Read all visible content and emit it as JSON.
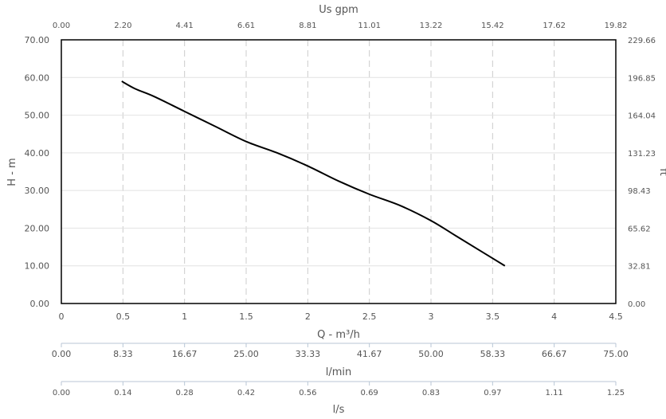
{
  "chart_data": {
    "type": "line",
    "title": "",
    "grid": true,
    "xlabel": "Q - m³/h",
    "ylabel": "H - m",
    "xlim": [
      0,
      4.5
    ],
    "ylim": [
      0,
      70
    ],
    "x_ticks": [
      "0",
      "0.5",
      "1",
      "1.5",
      "2",
      "2.5",
      "3",
      "3.5",
      "4",
      "4.5"
    ],
    "y_ticks": [
      "0.00",
      "10.00",
      "20.00",
      "30.00",
      "40.00",
      "50.00",
      "60.00",
      "70.00"
    ],
    "top_axis": {
      "label": "Us gpm",
      "ticks": [
        "0.00",
        "2.20",
        "4.41",
        "6.61",
        "8.81",
        "11.01",
        "13.22",
        "15.42",
        "17.62",
        "19.82"
      ]
    },
    "right_axis": {
      "label": "ft",
      "ticks": [
        "0.00",
        "32.81",
        "65.62",
        "98.43",
        "131.23",
        "164.04",
        "196.85",
        "229.66"
      ]
    },
    "lmin_axis": {
      "label": "l/min",
      "ticks": [
        "0.00",
        "8.33",
        "16.67",
        "25.00",
        "33.33",
        "41.67",
        "50.00",
        "58.33",
        "66.67",
        "75.00"
      ]
    },
    "ls_axis": {
      "label": "l/s",
      "ticks": [
        "0.00",
        "0.14",
        "0.28",
        "0.42",
        "0.56",
        "0.69",
        "0.83",
        "0.97",
        "1.11",
        "1.25"
      ]
    },
    "series": [
      {
        "color": "#000000",
        "x": [
          0.49,
          0.6,
          0.75,
          1.0,
          1.25,
          1.5,
          1.75,
          2.0,
          2.25,
          2.5,
          2.75,
          3.0,
          3.2,
          3.4,
          3.6
        ],
        "y": [
          59,
          57,
          55,
          51,
          47,
          43,
          40,
          36.5,
          32.5,
          29,
          26,
          22,
          18,
          14,
          10
        ]
      }
    ]
  }
}
